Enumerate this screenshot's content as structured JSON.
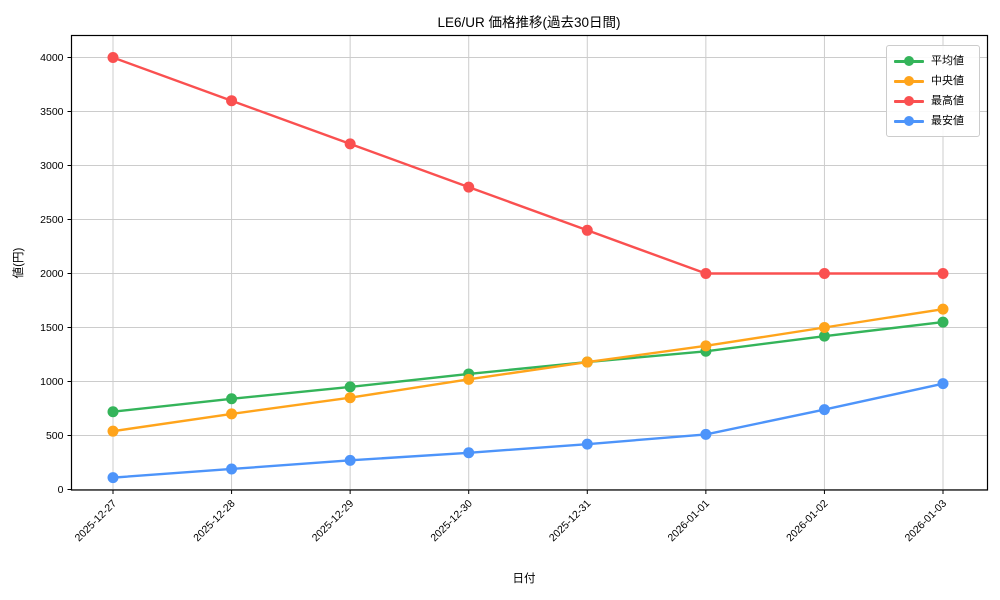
{
  "title": {
    "text": "LE6/UR 価格推移(過去30日間)"
  },
  "axes": {
    "x_label": "日付",
    "y_label": "値(円)"
  },
  "colors": {
    "grid": "#cccccc",
    "axis_border": "#000000",
    "background": "#ffffff",
    "legend_border": "#cccccc"
  },
  "chart_data": {
    "type": "line",
    "title": "LE6/UR 価格推移(過去30日間)",
    "xlabel": "日付",
    "ylabel": "値(円)",
    "categories": [
      "2025-12-27",
      "2025-12-28",
      "2025-12-29",
      "2025-12-30",
      "2025-12-31",
      "2026-01-01",
      "2026-01-02",
      "2026-01-03"
    ],
    "series": [
      {
        "name": "平均値",
        "color": "#34b45a",
        "values": [
          720,
          840,
          950,
          1070,
          1180,
          1280,
          1420,
          1550
        ]
      },
      {
        "name": "中央値",
        "color": "#ffa41b",
        "values": [
          540,
          700,
          850,
          1020,
          1180,
          1330,
          1500,
          1670
        ]
      },
      {
        "name": "最高値",
        "color": "#fa5050",
        "values": [
          4000,
          3600,
          3200,
          2800,
          2400,
          2000,
          2000,
          2000
        ]
      },
      {
        "name": "最安値",
        "color": "#4d94fa",
        "values": [
          110,
          190,
          270,
          340,
          420,
          510,
          740,
          980
        ]
      }
    ],
    "ylim": [
      0,
      4000
    ],
    "y_ticks": [
      0,
      500,
      1000,
      1500,
      2000,
      2500,
      3000,
      3500,
      4000
    ],
    "grid": true,
    "legend_position": "top-right",
    "x_tick_rotation_deg": 45
  }
}
